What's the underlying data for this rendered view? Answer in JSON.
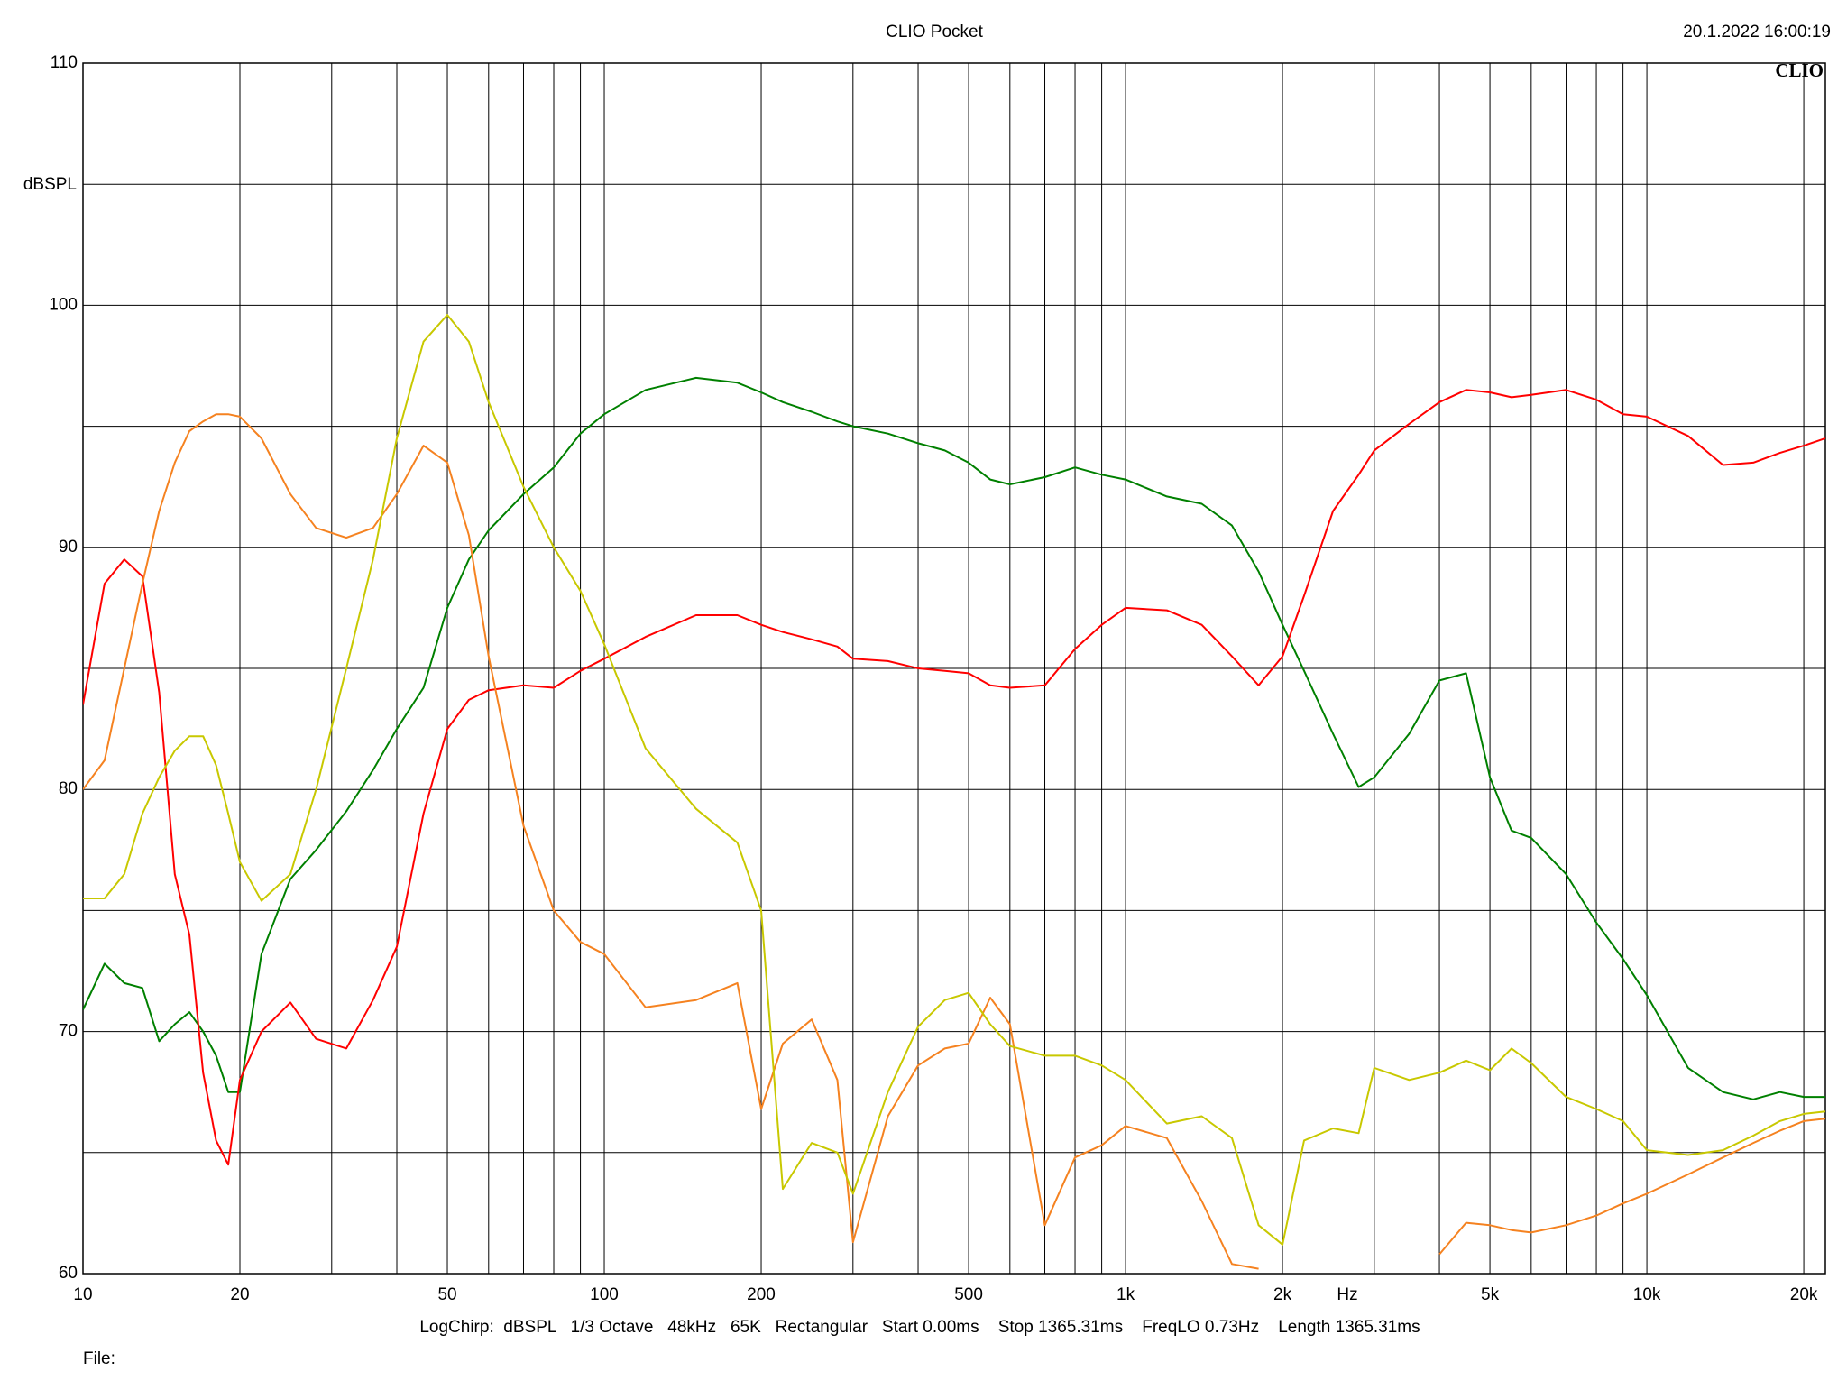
{
  "chart_data": {
    "type": "line",
    "title": "CLIO Pocket",
    "timestamp": "20.1.2022 16:00:19",
    "logo": "CLIO",
    "ylabel": "dBSPL",
    "xlabel": "Hz",
    "footer": "LogChirp:  dBSPL   1/3 Octave   48kHz   65K   Rectangular   Start 0.00ms    Stop 1365.31ms    FreqLO 0.73Hz    Length 1365.31ms",
    "file_label": "File:",
    "xscale": "log",
    "grid": true,
    "xlim": [
      10,
      22000
    ],
    "ylim": [
      60,
      110
    ],
    "xticks": [
      10,
      20,
      50,
      100,
      200,
      500,
      {
        "value": 1000,
        "label": "1k"
      },
      {
        "value": 2000,
        "label": "2k"
      },
      {
        "value": 5000,
        "label": "5k"
      },
      {
        "value": 10000,
        "label": "10k"
      },
      {
        "value": 20000,
        "label": "20k"
      }
    ],
    "xminor": [
      30,
      40,
      60,
      70,
      80,
      90,
      300,
      400,
      600,
      700,
      800,
      900,
      3000,
      4000,
      6000,
      7000,
      8000,
      9000
    ],
    "yticks": [
      60,
      70,
      80,
      90,
      100,
      110
    ],
    "yminor": [
      65,
      75,
      85,
      95,
      105
    ],
    "x": [
      10,
      11,
      12,
      13,
      14,
      15,
      16,
      17,
      18,
      19,
      20,
      22,
      25,
      28,
      32,
      36,
      40,
      45,
      50,
      55,
      60,
      70,
      80,
      90,
      100,
      120,
      150,
      180,
      200,
      220,
      250,
      280,
      300,
      350,
      400,
      450,
      500,
      550,
      600,
      700,
      800,
      900,
      1000,
      1200,
      1400,
      1600,
      1800,
      2000,
      2200,
      2500,
      2800,
      3000,
      3500,
      4000,
      4500,
      5000,
      5500,
      6000,
      7000,
      8000,
      9000,
      10000,
      12000,
      14000,
      16000,
      18000,
      20000,
      22000
    ],
    "series": [
      {
        "color": "#008000",
        "values": [
          70.9,
          72.8,
          72,
          71.8,
          69.6,
          70.3,
          70.8,
          70,
          69,
          67.5,
          67.5,
          73.2,
          76.3,
          77.5,
          79.1,
          80.8,
          82.5,
          84.2,
          87.5,
          89.5,
          90.7,
          92.2,
          93.3,
          94.7,
          95.5,
          96.5,
          97,
          96.8,
          96.4,
          96,
          95.6,
          95.2,
          95,
          94.7,
          94.3,
          94,
          93.5,
          92.8,
          92.6,
          92.9,
          93.3,
          93,
          92.8,
          92.1,
          91.8,
          90.9,
          89,
          86.8,
          84.9,
          82.3,
          80.1,
          80.5,
          82.3,
          84.5,
          84.8,
          80.5,
          78.3,
          78,
          76.5,
          74.5,
          73,
          71.5,
          68.5,
          67.5,
          67.2,
          67.5,
          67.3,
          67.3
        ]
      },
      {
        "color": "#ff0000",
        "values": [
          83.5,
          88.5,
          89.5,
          88.8,
          84,
          76.5,
          74,
          68.3,
          65.5,
          64.5,
          68,
          70,
          71.2,
          69.7,
          69.3,
          71.3,
          73.5,
          79,
          82.5,
          83.7,
          84.1,
          84.3,
          84.2,
          84.9,
          85.4,
          86.3,
          87.2,
          87.2,
          86.8,
          86.5,
          86.2,
          85.9,
          85.4,
          85.3,
          85,
          84.9,
          84.8,
          84.3,
          84.2,
          84.3,
          85.8,
          86.8,
          87.5,
          87.4,
          86.8,
          85.5,
          84.3,
          85.5,
          88,
          91.5,
          93,
          94,
          95.1,
          96,
          96.5,
          96.4,
          96.2,
          96.3,
          96.5,
          96.1,
          95.5,
          95.4,
          94.6,
          93.4,
          93.5,
          93.9,
          94.2,
          94.5
        ]
      },
      {
        "color": "#f58220",
        "values": [
          80,
          81.2,
          85,
          88.5,
          91.5,
          93.5,
          94.8,
          95.2,
          95.5,
          95.5,
          95.4,
          94.5,
          92.2,
          90.8,
          90.4,
          90.8,
          92.2,
          94.2,
          93.5,
          90.5,
          85.5,
          78.5,
          75,
          73.7,
          73.2,
          71,
          71.3,
          72,
          66.8,
          69.5,
          70.5,
          68,
          61.3,
          66.5,
          68.6,
          69.3,
          69.5,
          71.4,
          70.3,
          62,
          64.8,
          65.3,
          66.1,
          65.6,
          63,
          60.4,
          60.2,
          null,
          null,
          null,
          null,
          null,
          null,
          60.8,
          62.1,
          62,
          61.8,
          61.7,
          62,
          62.4,
          62.9,
          63.3,
          64.1,
          64.8,
          65.4,
          65.9,
          66.3,
          66.4
        ]
      },
      {
        "color": "#c8c800",
        "values": [
          75.5,
          75.5,
          76.5,
          79,
          80.5,
          81.6,
          82.2,
          82.2,
          81,
          79,
          77,
          75.4,
          76.5,
          80,
          85,
          89.5,
          94.5,
          98.5,
          99.6,
          98.5,
          96,
          92.5,
          90,
          88.2,
          86,
          81.7,
          79.2,
          77.8,
          75,
          63.5,
          65.4,
          65,
          63.3,
          67.5,
          70.2,
          71.3,
          71.6,
          70.3,
          69.4,
          69,
          69,
          68.6,
          68,
          66.2,
          66.5,
          65.6,
          62,
          61.2,
          65.5,
          66,
          65.8,
          68.5,
          68,
          68.3,
          68.8,
          68.4,
          69.3,
          68.7,
          67.3,
          66.8,
          66.3,
          65.1,
          64.9,
          65.1,
          65.7,
          66.3,
          66.6,
          66.7
        ]
      }
    ]
  }
}
